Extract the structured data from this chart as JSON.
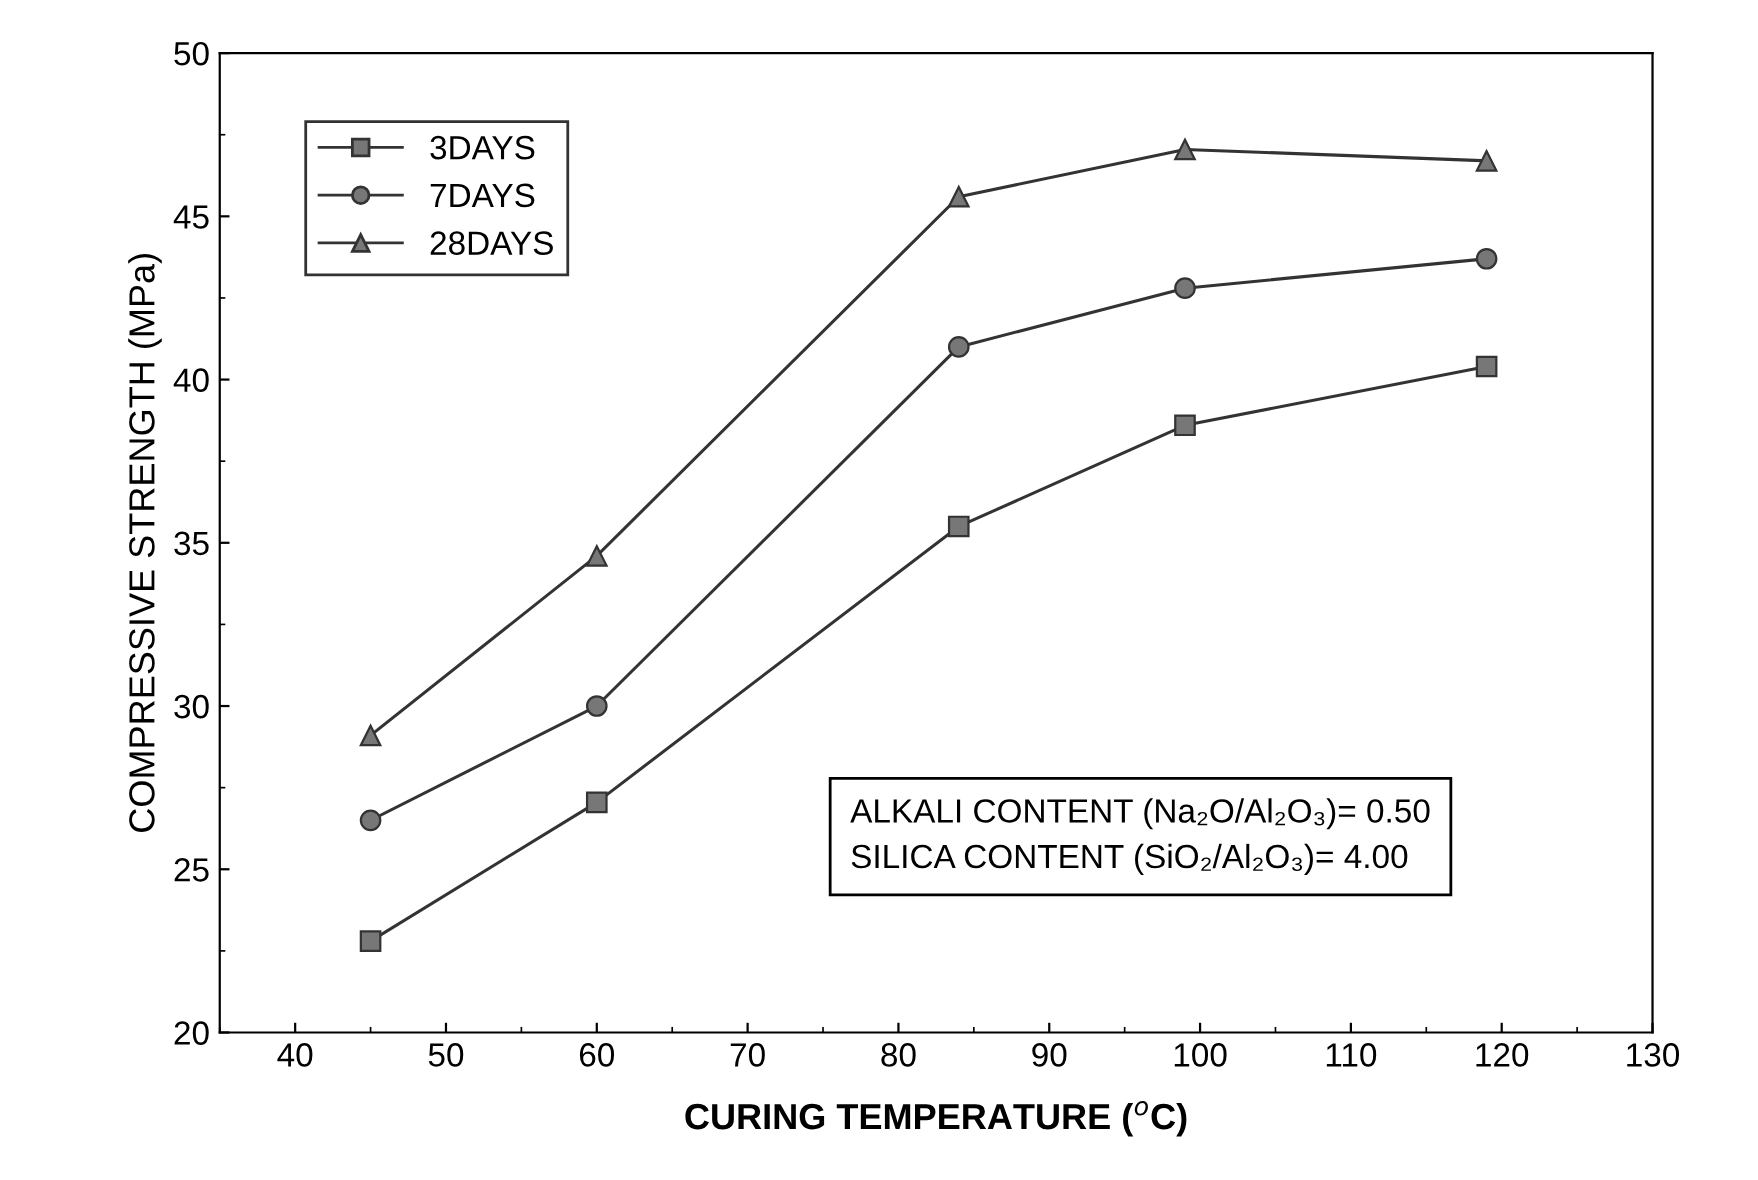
{
  "chart_data": {
    "type": "line",
    "xlabel": "CURING TEMPERATURE ($^{o}$C)",
    "ylabel": "COMPRESSIVE STRENGTH (MPa)",
    "x": [
      45,
      60,
      84,
      99,
      119
    ],
    "series": [
      {
        "name": "3DAYS",
        "color": "#333333",
        "marker": "square",
        "values": [
          22.8,
          27.05,
          35.5,
          38.6,
          40.4
        ]
      },
      {
        "name": "7DAYS",
        "color": "#333333",
        "marker": "circle",
        "values": [
          26.5,
          30.0,
          41.0,
          42.8,
          43.7
        ]
      },
      {
        "name": "28DAYS",
        "color": "#333333",
        "marker": "triangle",
        "values": [
          29.1,
          34.6,
          45.6,
          47.05,
          46.7
        ]
      }
    ],
    "xlim": [
      35,
      130
    ],
    "xticks": [
      40,
      50,
      60,
      70,
      80,
      90,
      100,
      110,
      120,
      130
    ],
    "ylim": [
      20,
      50
    ],
    "yticks": [
      20,
      25,
      30,
      35,
      40,
      45,
      50
    ],
    "annotations": [
      "ALKALI CONTENT (Na₂O/Al₂O₃)= 0.50\nSILICA CONTENT (SiO₂/Al₂O₃)= 4.00"
    ],
    "legend": "top left",
    "grid": false,
    "line_style": "solid"
  }
}
